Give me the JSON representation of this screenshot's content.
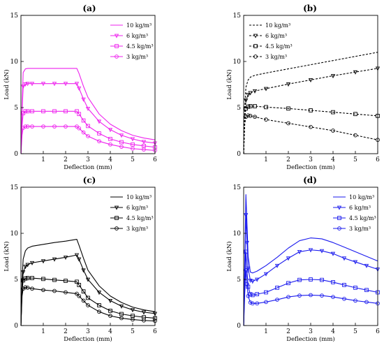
{
  "chart_data": [
    {
      "panel_label": "(a)",
      "type": "line",
      "color": "#ee22ee",
      "xlabel": "Deflection (mm)",
      "ylabel": "Load (kN)",
      "xlim": [
        0,
        6
      ],
      "ylim": [
        0,
        15
      ],
      "xticks": [
        "1",
        "2",
        "3",
        "4",
        "5",
        "6"
      ],
      "yticks": [
        "0",
        "5",
        "10",
        "15"
      ],
      "grid": false,
      "legend_position": "top-right",
      "series": [
        {
          "name": "10 kg/m³",
          "marker": "none",
          "x": [
            0,
            0.05,
            0.1,
            0.2,
            0.3,
            0.5,
            1.0,
            1.5,
            2.0,
            2.5,
            2.6,
            2.8,
            3.0,
            3.5,
            4.0,
            4.5,
            5.0,
            5.5,
            6.0
          ],
          "y": [
            0,
            5.0,
            8.8,
            9.2,
            9.25,
            9.25,
            9.25,
            9.25,
            9.25,
            9.25,
            8.7,
            7.3,
            6.1,
            4.3,
            3.2,
            2.5,
            2.0,
            1.7,
            1.5
          ]
        },
        {
          "name": "6 kg/m³",
          "marker": "inverted-triangle",
          "x": [
            0,
            0.05,
            0.1,
            0.2,
            0.3,
            0.5,
            1.0,
            1.5,
            2.0,
            2.5,
            2.6,
            2.8,
            3.0,
            3.5,
            4.0,
            4.5,
            5.0,
            5.5,
            6.0
          ],
          "y": [
            0,
            4.5,
            7.3,
            7.55,
            7.6,
            7.6,
            7.6,
            7.6,
            7.6,
            7.6,
            7.1,
            5.9,
            4.9,
            3.5,
            2.6,
            2.0,
            1.6,
            1.3,
            1.15
          ]
        },
        {
          "name": "4.5 kg/m³",
          "marker": "square",
          "x": [
            0,
            0.05,
            0.1,
            0.2,
            0.3,
            0.5,
            1.0,
            1.5,
            2.0,
            2.5,
            2.6,
            2.8,
            3.0,
            3.5,
            4.0,
            4.5,
            5.0,
            5.5,
            6.0
          ],
          "y": [
            0,
            3.0,
            4.4,
            4.6,
            4.6,
            4.6,
            4.6,
            4.6,
            4.6,
            4.6,
            4.3,
            3.6,
            3.0,
            2.2,
            1.6,
            1.25,
            1.0,
            0.85,
            0.7
          ]
        },
        {
          "name": "3 kg/m³",
          "marker": "circle",
          "x": [
            0,
            0.05,
            0.1,
            0.2,
            0.3,
            0.5,
            1.0,
            1.5,
            2.0,
            2.5,
            2.6,
            2.8,
            3.0,
            3.5,
            4.0,
            4.5,
            5.0,
            5.5,
            6.0
          ],
          "y": [
            0,
            2.0,
            2.8,
            2.95,
            2.95,
            2.95,
            2.95,
            2.95,
            2.95,
            2.95,
            2.75,
            2.3,
            1.9,
            1.35,
            1.0,
            0.75,
            0.55,
            0.45,
            0.35
          ]
        }
      ]
    },
    {
      "panel_label": "(b)",
      "type": "line",
      "color": "#000000",
      "xlabel": "Deflection (mm)",
      "ylabel": "Load (kN)",
      "xlim": [
        0,
        6
      ],
      "ylim": [
        0,
        15
      ],
      "xticks": [
        "1",
        "2",
        "3",
        "4",
        "5",
        "6"
      ],
      "yticks": [
        "0",
        "5",
        "10",
        "15"
      ],
      "grid": false,
      "legend_position": "top-left",
      "series": [
        {
          "name": "10 kg/m³",
          "marker": "none",
          "dashed": true,
          "x": [
            0,
            0.05,
            0.1,
            0.2,
            0.3,
            0.5,
            1.0,
            2.0,
            3.0,
            4.0,
            5.0,
            6.0
          ],
          "y": [
            0,
            5.0,
            7.2,
            8.0,
            8.3,
            8.5,
            8.75,
            9.2,
            9.65,
            10.1,
            10.55,
            11.0
          ]
        },
        {
          "name": "6 kg/m³",
          "marker": "inverted-triangle",
          "dashed": true,
          "x": [
            0,
            0.05,
            0.1,
            0.2,
            0.3,
            0.5,
            1.0,
            2.0,
            3.0,
            4.0,
            5.0,
            6.0
          ],
          "y": [
            0,
            4.0,
            5.8,
            6.4,
            6.6,
            6.8,
            7.05,
            7.55,
            8.0,
            8.45,
            8.85,
            9.25
          ]
        },
        {
          "name": "4.5 kg/m³",
          "marker": "square",
          "dashed": true,
          "x": [
            0,
            0.05,
            0.1,
            0.2,
            0.3,
            0.5,
            1.0,
            2.0,
            3.0,
            4.0,
            5.0,
            6.0
          ],
          "y": [
            0,
            3.8,
            4.9,
            5.1,
            5.15,
            5.15,
            5.05,
            4.9,
            4.7,
            4.5,
            4.3,
            4.1
          ]
        },
        {
          "name": "3 kg/m³",
          "marker": "circle",
          "dashed": true,
          "x": [
            0,
            0.05,
            0.1,
            0.2,
            0.3,
            0.5,
            1.0,
            2.0,
            3.0,
            4.0,
            5.0,
            6.0
          ],
          "y": [
            0,
            3.2,
            4.0,
            4.15,
            4.1,
            4.0,
            3.7,
            3.3,
            2.9,
            2.5,
            2.0,
            1.5
          ]
        }
      ]
    },
    {
      "panel_label": "(c)",
      "type": "line",
      "color": "#000000",
      "xlabel": "Deflection (mm)",
      "ylabel": "Load (kN)",
      "xlim": [
        0,
        6
      ],
      "ylim": [
        0,
        15
      ],
      "xticks": [
        "1",
        "2",
        "3",
        "4",
        "5",
        "6"
      ],
      "yticks": [
        "0",
        "5",
        "10",
        "15"
      ],
      "grid": false,
      "legend_position": "top-right",
      "series": [
        {
          "name": "10 kg/m³",
          "marker": "none",
          "x": [
            0,
            0.05,
            0.1,
            0.2,
            0.3,
            0.5,
            1.0,
            1.5,
            2.0,
            2.5,
            2.6,
            2.8,
            3.0,
            3.5,
            4.0,
            4.5,
            5.0,
            5.5,
            6.0
          ],
          "y": [
            0,
            5.0,
            7.2,
            8.1,
            8.4,
            8.6,
            8.8,
            9.0,
            9.15,
            9.35,
            8.7,
            7.3,
            6.0,
            4.3,
            3.2,
            2.5,
            2.0,
            1.7,
            1.5
          ]
        },
        {
          "name": "6 kg/m³",
          "marker": "inverted-triangle",
          "x": [
            0,
            0.05,
            0.1,
            0.2,
            0.3,
            0.5,
            1.0,
            1.5,
            2.0,
            2.5,
            2.6,
            2.8,
            3.0,
            3.5,
            4.0,
            4.5,
            5.0,
            5.5,
            6.0
          ],
          "y": [
            0,
            4.0,
            5.8,
            6.4,
            6.6,
            6.8,
            7.0,
            7.2,
            7.4,
            7.65,
            7.2,
            6.0,
            5.0,
            3.6,
            2.7,
            2.1,
            1.7,
            1.45,
            1.3
          ]
        },
        {
          "name": "4.5 kg/m³",
          "marker": "square",
          "x": [
            0,
            0.05,
            0.1,
            0.2,
            0.3,
            0.5,
            1.0,
            1.5,
            2.0,
            2.5,
            2.6,
            2.8,
            3.0,
            3.5,
            4.0,
            4.5,
            5.0,
            5.5,
            6.0
          ],
          "y": [
            0,
            3.8,
            4.9,
            5.1,
            5.15,
            5.15,
            5.05,
            4.95,
            4.85,
            4.75,
            4.4,
            3.7,
            3.0,
            2.2,
            1.6,
            1.25,
            1.05,
            0.9,
            0.8
          ]
        },
        {
          "name": "3 kg/m³",
          "marker": "circle",
          "x": [
            0,
            0.05,
            0.1,
            0.2,
            0.3,
            0.5,
            1.0,
            1.5,
            2.0,
            2.5,
            2.6,
            2.8,
            3.0,
            3.5,
            4.0,
            4.5,
            5.0,
            5.5,
            6.0
          ],
          "y": [
            0,
            3.2,
            4.0,
            4.15,
            4.1,
            4.0,
            3.85,
            3.75,
            3.6,
            3.45,
            3.2,
            2.7,
            2.2,
            1.5,
            1.05,
            0.8,
            0.65,
            0.55,
            0.5
          ]
        }
      ]
    },
    {
      "panel_label": "(d)",
      "type": "line",
      "color": "#1a1aee",
      "xlabel": "Deflection (mm)",
      "ylabel": "Load (kN)",
      "xlim": [
        0,
        6
      ],
      "ylim": [
        0,
        15
      ],
      "xticks": [
        "1",
        "2",
        "3",
        "4",
        "5",
        "6"
      ],
      "yticks": [
        "0",
        "5",
        "10",
        "15"
      ],
      "grid": false,
      "legend_position": "top-right",
      "series": [
        {
          "name": "10 kg/m³",
          "marker": "none",
          "x": [
            0,
            0.05,
            0.1,
            0.15,
            0.2,
            0.3,
            0.4,
            0.6,
            1.0,
            1.5,
            2.0,
            2.5,
            3.0,
            3.5,
            4.0,
            4.5,
            5.0,
            5.5,
            6.0
          ],
          "y": [
            0,
            7.0,
            14.2,
            11.0,
            7.5,
            5.8,
            5.7,
            5.9,
            6.5,
            7.4,
            8.4,
            9.2,
            9.5,
            9.4,
            9.0,
            8.5,
            8.0,
            7.5,
            7.0
          ]
        },
        {
          "name": "6 kg/m³",
          "marker": "inverted-triangle",
          "x": [
            0,
            0.05,
            0.1,
            0.15,
            0.2,
            0.3,
            0.4,
            0.6,
            1.0,
            1.5,
            2.0,
            2.5,
            3.0,
            3.5,
            4.0,
            4.5,
            5.0,
            5.5,
            6.0
          ],
          "y": [
            0,
            6.0,
            12.0,
            9.0,
            6.2,
            4.9,
            4.8,
            5.0,
            5.6,
            6.5,
            7.3,
            8.0,
            8.2,
            8.1,
            7.8,
            7.3,
            6.9,
            6.5,
            6.1
          ]
        },
        {
          "name": "4.5 kg/m³",
          "marker": "square",
          "x": [
            0,
            0.05,
            0.1,
            0.15,
            0.2,
            0.3,
            0.4,
            0.6,
            1.0,
            1.5,
            2.0,
            2.5,
            3.0,
            3.5,
            4.0,
            4.5,
            5.0,
            5.5,
            6.0
          ],
          "y": [
            0,
            4.5,
            8.0,
            6.0,
            4.2,
            3.4,
            3.3,
            3.4,
            3.6,
            4.1,
            4.6,
            4.95,
            5.0,
            4.95,
            4.7,
            4.4,
            4.1,
            3.85,
            3.6
          ]
        },
        {
          "name": "3 kg/m³",
          "marker": "circle",
          "x": [
            0,
            0.05,
            0.1,
            0.15,
            0.2,
            0.3,
            0.4,
            0.6,
            1.0,
            1.5,
            2.0,
            2.5,
            3.0,
            3.5,
            4.0,
            4.5,
            5.0,
            5.5,
            6.0
          ],
          "y": [
            0,
            3.5,
            6.0,
            4.5,
            3.2,
            2.5,
            2.4,
            2.4,
            2.55,
            2.8,
            3.1,
            3.25,
            3.3,
            3.25,
            3.1,
            2.9,
            2.7,
            2.55,
            2.4
          ]
        }
      ]
    }
  ]
}
